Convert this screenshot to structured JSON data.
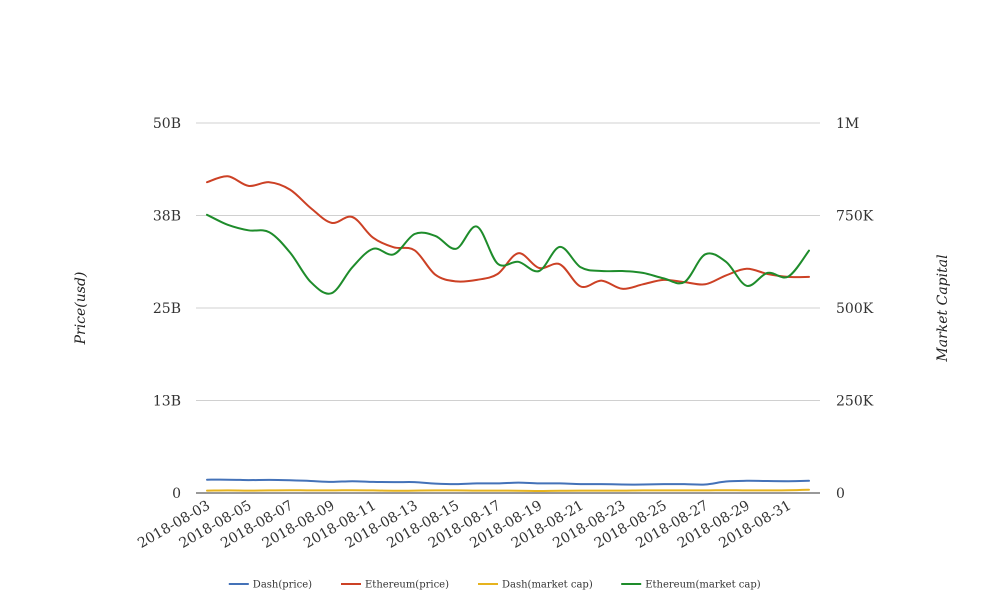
{
  "chart_data": {
    "type": "line",
    "xlabel": "",
    "ylabel_left": "Price(usd)",
    "ylabel_right": "Market Capital",
    "x": [
      "2018-08-03",
      "2018-08-04",
      "2018-08-05",
      "2018-08-06",
      "2018-08-07",
      "2018-08-08",
      "2018-08-09",
      "2018-08-10",
      "2018-08-11",
      "2018-08-12",
      "2018-08-13",
      "2018-08-14",
      "2018-08-15",
      "2018-08-16",
      "2018-08-17",
      "2018-08-18",
      "2018-08-19",
      "2018-08-20",
      "2018-08-21",
      "2018-08-22",
      "2018-08-23",
      "2018-08-24",
      "2018-08-25",
      "2018-08-26",
      "2018-08-27",
      "2018-08-28",
      "2018-08-29",
      "2018-08-30",
      "2018-08-31",
      "2018-09-01"
    ],
    "x_tick_labels": [
      "2018-08-03",
      "2018-08-05",
      "2018-08-07",
      "2018-08-09",
      "2018-08-11",
      "2018-08-13",
      "2018-08-15",
      "2018-08-17",
      "2018-08-19",
      "2018-08-21",
      "2018-08-23",
      "2018-08-25",
      "2018-08-27",
      "2018-08-29",
      "2018-08-31"
    ],
    "y_left": {
      "min": 0,
      "max": 50000000000,
      "ticks": [
        0,
        12500000000,
        25000000000,
        37500000000,
        50000000000
      ],
      "tick_labels": [
        "0",
        "13B",
        "25B",
        "38B",
        "50B"
      ]
    },
    "y_right": {
      "min": 0,
      "max": 1000000,
      "ticks": [
        0,
        250000,
        500000,
        750000,
        1000000
      ],
      "tick_labels": [
        "0",
        "250K",
        "500K",
        "750K",
        "1M"
      ]
    },
    "grid": true,
    "legend_position": "bottom",
    "series": [
      {
        "name": "Dash(price)",
        "axis": "left",
        "color": "#4472b8",
        "values": [
          1800000000,
          1800000000,
          1750000000,
          1770000000,
          1720000000,
          1620000000,
          1500000000,
          1600000000,
          1500000000,
          1470000000,
          1470000000,
          1270000000,
          1200000000,
          1300000000,
          1300000000,
          1400000000,
          1300000000,
          1300000000,
          1200000000,
          1200000000,
          1150000000,
          1150000000,
          1200000000,
          1200000000,
          1150000000,
          1550000000,
          1650000000,
          1620000000,
          1600000000,
          1650000000
        ]
      },
      {
        "name": "Ethereum(price)",
        "axis": "left",
        "color": "#cc4125",
        "values": [
          42000000000,
          42800000000,
          41500000000,
          42000000000,
          41000000000,
          38500000000,
          36500000000,
          37300000000,
          34500000000,
          33200000000,
          32800000000,
          29500000000,
          28600000000,
          28800000000,
          29600000000,
          32400000000,
          30400000000,
          30900000000,
          27900000000,
          28700000000,
          27600000000,
          28200000000,
          28800000000,
          28500000000,
          28200000000,
          29400000000,
          30300000000,
          29600000000,
          29200000000,
          29200000000
        ]
      },
      {
        "name": "Dash(market cap)",
        "axis": "right",
        "color": "#e6b31e",
        "values": [
          6500,
          7000,
          6500,
          7000,
          7500,
          7000,
          7000,
          7500,
          7000,
          6000,
          6500,
          7000,
          7000,
          6500,
          6500,
          6000,
          5500,
          6000,
          6500,
          6500,
          6500,
          7000,
          7000,
          7000,
          7000,
          7500,
          7000,
          7000,
          7500,
          9000
        ]
      },
      {
        "name": "Ethereum(market cap)",
        "axis": "right",
        "color": "#1e8c2b",
        "values": [
          752000,
          725000,
          710000,
          705000,
          650000,
          570000,
          540000,
          610000,
          660000,
          645000,
          700000,
          695000,
          660000,
          720000,
          620000,
          625000,
          600000,
          665000,
          610000,
          600000,
          600000,
          595000,
          580000,
          570000,
          645000,
          625000,
          560000,
          595000,
          585000,
          655000
        ]
      }
    ]
  }
}
